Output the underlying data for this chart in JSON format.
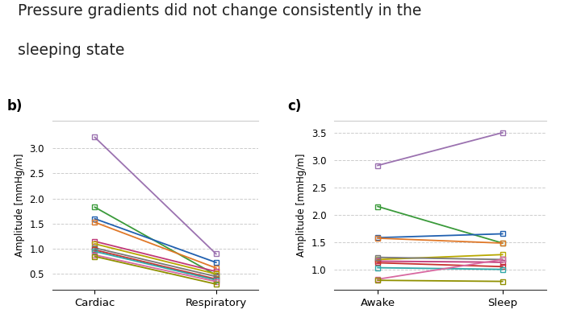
{
  "title_line1": "Pressure gradients did not change consistently in the",
  "title_line2": "sleeping state",
  "title_fontsize": 13.5,
  "panel_b_label": "b)",
  "panel_c_label": "c)",
  "panel_b_xlabel": "Cardiac",
  "panel_b_xlabel2": "Respiratory",
  "panel_c_xlabel": "Awake",
  "panel_c_xlabel2": "Sleep",
  "ylabel": "Amplitude [mmHg/m]",
  "panel_b": {
    "lines": [
      {
        "cardiac": 3.22,
        "respiratory": 0.9,
        "color": "#9B72B0"
      },
      {
        "cardiac": 1.83,
        "respiratory": 0.48,
        "color": "#3A9A3A"
      },
      {
        "cardiac": 1.6,
        "respiratory": 0.73,
        "color": "#2060B0"
      },
      {
        "cardiac": 1.53,
        "respiratory": 0.62,
        "color": "#E07828"
      },
      {
        "cardiac": 1.15,
        "respiratory": 0.55,
        "color": "#C03878"
      },
      {
        "cardiac": 1.1,
        "respiratory": 0.5,
        "color": "#B8A800"
      },
      {
        "cardiac": 1.02,
        "respiratory": 0.45,
        "color": "#787878"
      },
      {
        "cardiac": 0.98,
        "respiratory": 0.4,
        "color": "#C83030"
      },
      {
        "cardiac": 0.95,
        "respiratory": 0.38,
        "color": "#30A8A8"
      },
      {
        "cardiac": 0.88,
        "respiratory": 0.35,
        "color": "#D868A0"
      },
      {
        "cardiac": 0.85,
        "respiratory": 0.3,
        "color": "#909000"
      }
    ],
    "ylim": [
      0.18,
      3.55
    ],
    "yticks": [
      0.5,
      1.0,
      1.5,
      2.0,
      2.5,
      3.0
    ]
  },
  "panel_c": {
    "lines": [
      {
        "awake": 2.9,
        "sleep": 3.5,
        "color": "#9B72B0"
      },
      {
        "awake": 2.15,
        "sleep": 1.48,
        "color": "#3A9A3A"
      },
      {
        "awake": 1.58,
        "sleep": 1.65,
        "color": "#2060B0"
      },
      {
        "awake": 1.57,
        "sleep": 1.48,
        "color": "#E07828"
      },
      {
        "awake": 1.18,
        "sleep": 1.27,
        "color": "#B8A800"
      },
      {
        "awake": 1.15,
        "sleep": 1.13,
        "color": "#C03878"
      },
      {
        "awake": 1.12,
        "sleep": 1.05,
        "color": "#C83030"
      },
      {
        "awake": 1.22,
        "sleep": 1.18,
        "color": "#787878"
      },
      {
        "awake": 1.03,
        "sleep": 1.0,
        "color": "#30A8A8"
      },
      {
        "awake": 0.82,
        "sleep": 1.18,
        "color": "#D868A0"
      },
      {
        "awake": 0.8,
        "sleep": 0.78,
        "color": "#909000"
      }
    ],
    "ylim": [
      0.62,
      3.72
    ],
    "yticks": [
      1.0,
      1.5,
      2.0,
      2.5,
      3.0,
      3.5
    ]
  },
  "grid_color": "#cccccc",
  "bg_color": "#ffffff",
  "marker_size": 4.5,
  "marker": "s"
}
